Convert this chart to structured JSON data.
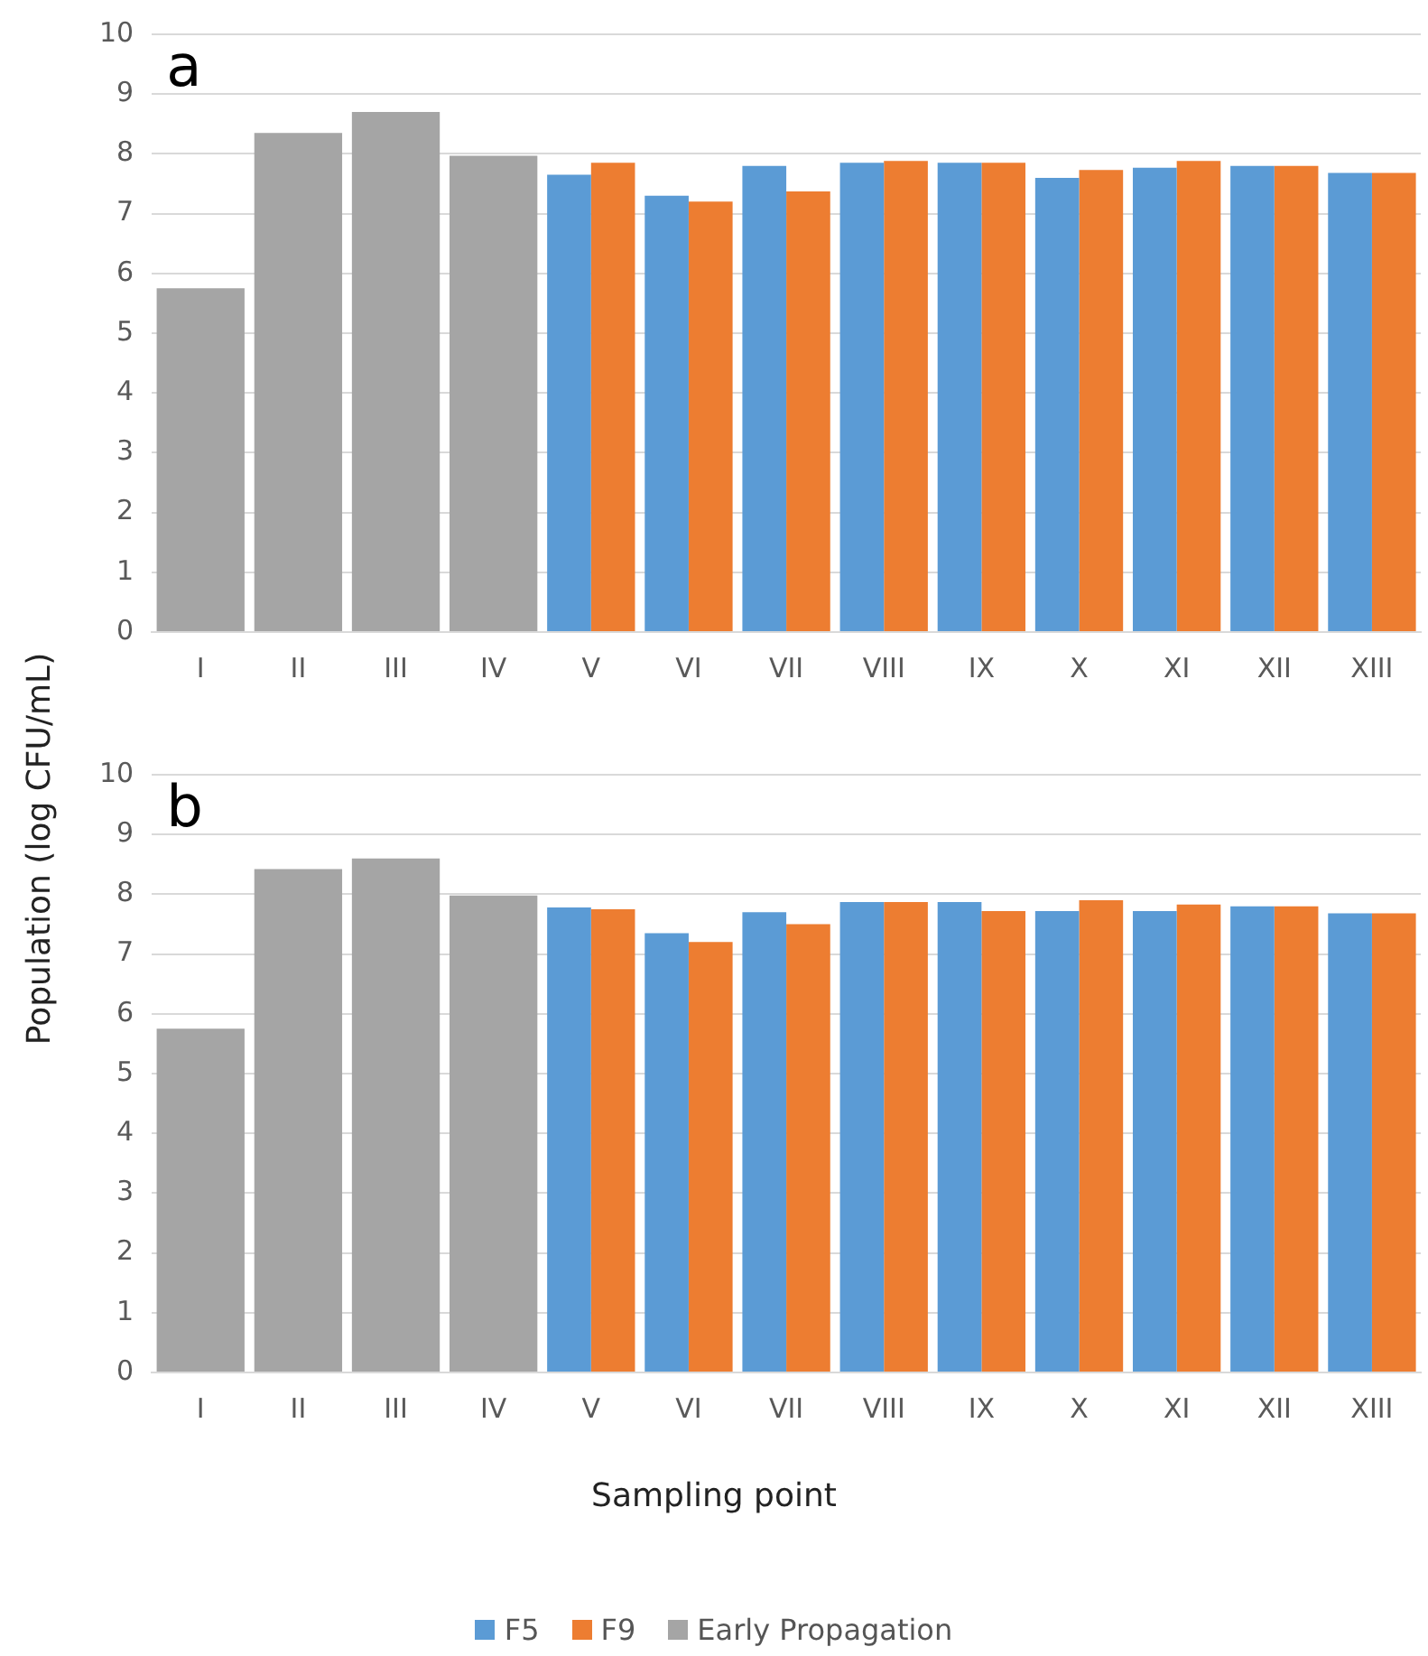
{
  "chart_data": [
    {
      "type": "bar",
      "title": "a",
      "ylabel": "Population (log CFU/mL)",
      "categories": [
        "I",
        "II",
        "III",
        "IV",
        "V",
        "VI",
        "VII",
        "VIII",
        "IX",
        "X",
        "XI",
        "XII",
        "XIII"
      ],
      "series": [
        {
          "color": "#5b9bd5",
          "values": [
            null,
            null,
            null,
            null,
            7.65,
            7.3,
            7.8,
            7.85,
            7.85,
            7.6,
            7.77,
            7.8,
            7.68
          ]
        },
        {
          "color": "#ed7d31",
          "values": [
            null,
            null,
            null,
            null,
            7.85,
            7.2,
            7.37,
            7.88,
            7.85,
            7.73,
            7.88,
            7.8,
            7.68
          ]
        },
        {
          "color": "#a5a5a5",
          "values": [
            5.75,
            8.35,
            8.7,
            7.97,
            null,
            null,
            null,
            null,
            null,
            null,
            null,
            null,
            null
          ]
        }
      ],
      "ylim": [
        0,
        10
      ],
      "yticks": [
        0,
        1,
        2,
        3,
        4,
        5,
        6,
        7,
        8,
        9,
        10
      ],
      "grid": "y"
    },
    {
      "type": "bar",
      "title": "b",
      "xlabel": "Sampling point",
      "categories": [
        "I",
        "II",
        "III",
        "IV",
        "V",
        "VI",
        "VII",
        "VIII",
        "IX",
        "X",
        "XI",
        "XII",
        "XIII"
      ],
      "series": [
        {
          "name": "F5",
          "color": "#5b9bd5",
          "values": [
            null,
            null,
            null,
            null,
            7.78,
            7.35,
            7.7,
            7.87,
            7.87,
            7.72,
            7.72,
            7.8,
            7.68
          ]
        },
        {
          "name": "F9",
          "color": "#ed7d31",
          "values": [
            null,
            null,
            null,
            null,
            7.75,
            7.2,
            7.5,
            7.87,
            7.72,
            7.9,
            7.83,
            7.8,
            7.68
          ]
        },
        {
          "name": "Early Propagation",
          "color": "#a5a5a5",
          "values": [
            5.75,
            8.42,
            8.6,
            7.98,
            null,
            null,
            null,
            null,
            null,
            null,
            null,
            null,
            null
          ]
        }
      ],
      "ylim": [
        0,
        10
      ],
      "yticks": [
        0,
        1,
        2,
        3,
        4,
        5,
        6,
        7,
        8,
        9,
        10
      ],
      "grid": "y",
      "legend": "bottom"
    }
  ]
}
